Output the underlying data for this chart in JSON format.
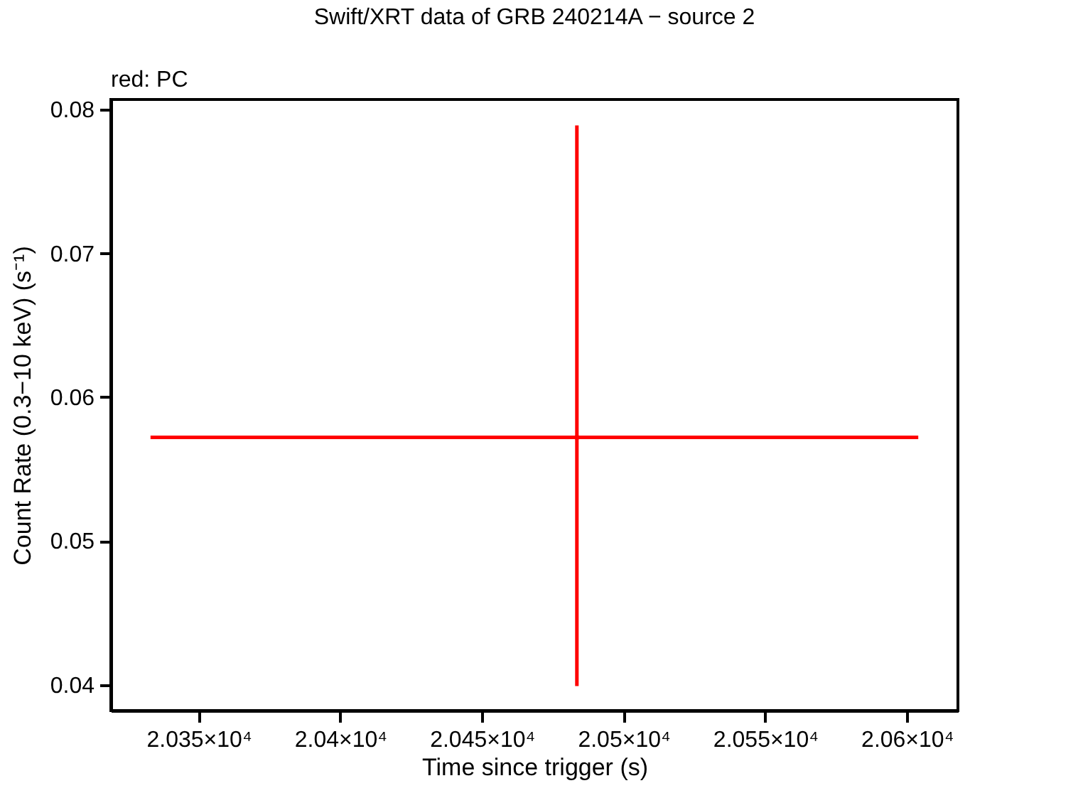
{
  "chart_data": {
    "type": "scatter",
    "title": "Swift/XRT data of GRB 240214A − source 2",
    "xlabel": "Time since trigger (s)",
    "ylabel": "Count Rate (0.3−10 keV) (s⁻¹)",
    "annotations": [
      "red: PC"
    ],
    "x": [
      20483.5
    ],
    "series": [
      {
        "color": "#ff0000",
        "values": [
          0.0572
        ],
        "errors": [
          [
            0.0399,
            0.0789
          ]
        ],
        "xerrors": [
          [
            20333,
            20604
          ]
        ]
      }
    ],
    "marker": "square",
    "xlim": [
      20319,
      20618
    ],
    "xticks": [
      {
        "value": 20350,
        "label": "2.035×10⁴"
      },
      {
        "value": 20400,
        "label": "2.04×10⁴"
      },
      {
        "value": 20450,
        "label": "2.045×10⁴"
      },
      {
        "value": 20500,
        "label": "2.05×10⁴"
      },
      {
        "value": 20550,
        "label": "2.055×10⁴"
      },
      {
        "value": 20600,
        "label": "2.06×10⁴"
      }
    ],
    "ylim": [
      0.0382,
      0.0807
    ],
    "yticks": [
      0.04,
      0.05,
      0.06,
      0.07,
      0.08
    ],
    "grid": false
  }
}
